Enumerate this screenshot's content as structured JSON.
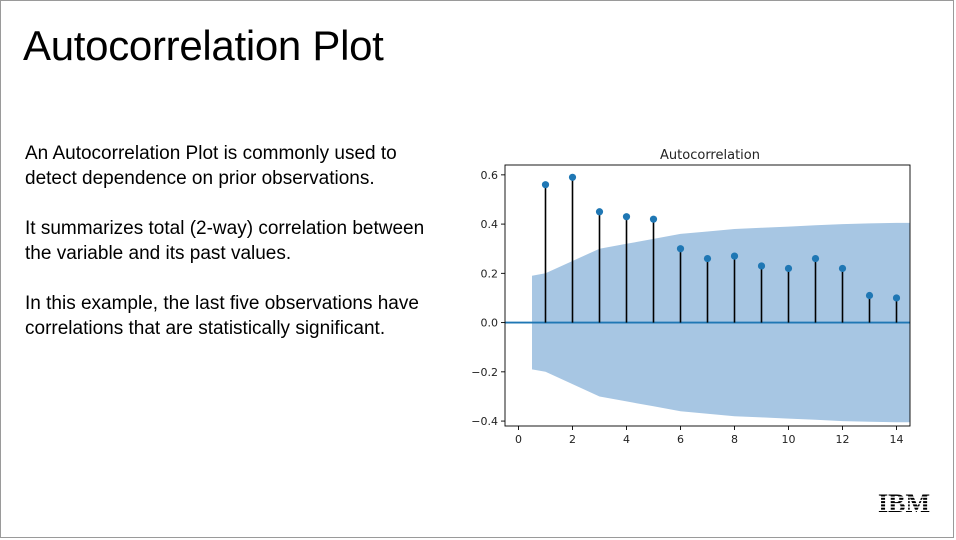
{
  "slide": {
    "title": "Autocorrelation Plot",
    "paragraphs": [
      "An Autocorrelation Plot is commonly used to detect dependence on prior observations.",
      "It summarizes total (2-way) correlation between the variable and its past values.",
      "In this example, the last five observations have correlations that are statistically significant."
    ],
    "logo": "IBM"
  },
  "chart_data": {
    "type": "stem",
    "title": "Autocorrelation",
    "xlabel": "",
    "ylabel": "",
    "xlim": [
      -0.5,
      14.5
    ],
    "ylim": [
      -0.42,
      0.64
    ],
    "xticks": [
      0,
      2,
      4,
      6,
      8,
      10,
      12,
      14
    ],
    "yticks": [
      -0.4,
      -0.2,
      0.0,
      0.2,
      0.4,
      0.6
    ],
    "ytick_labels": [
      "−0.4",
      "−0.2",
      "0.0",
      "0.2",
      "0.4",
      "0.6"
    ],
    "lags": [
      1,
      2,
      3,
      4,
      5,
      6,
      7,
      8,
      9,
      10,
      11,
      12,
      13,
      14
    ],
    "values": [
      0.56,
      0.59,
      0.45,
      0.43,
      0.42,
      0.3,
      0.26,
      0.27,
      0.23,
      0.22,
      0.26,
      0.22,
      0.11,
      0.1
    ],
    "confidence_band": {
      "x": [
        0.5,
        1,
        2,
        3,
        4,
        5,
        6,
        7,
        8,
        9,
        10,
        11,
        12,
        13,
        14,
        14.5
      ],
      "upper": [
        0.19,
        0.2,
        0.25,
        0.3,
        0.32,
        0.34,
        0.36,
        0.37,
        0.38,
        0.385,
        0.39,
        0.395,
        0.4,
        0.403,
        0.405,
        0.405
      ]
    },
    "grid": false,
    "colors": {
      "marker": "#1f77b4",
      "stem": "#000000",
      "zero_line": "#1f77b4",
      "band": "#a7c6e3"
    }
  }
}
